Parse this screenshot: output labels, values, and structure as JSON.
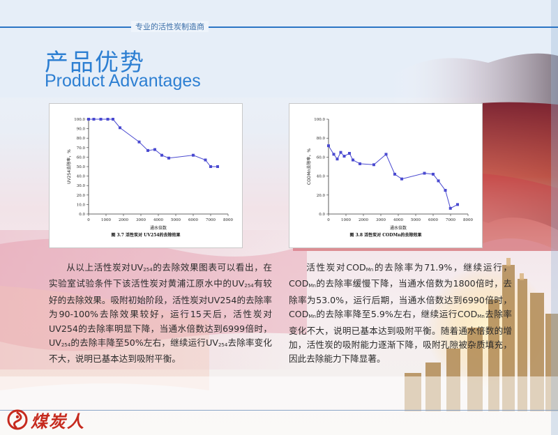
{
  "header": {
    "tagline": "专业的活性炭制造商"
  },
  "title": {
    "cn": "产品优势",
    "en": "Product Advantages"
  },
  "chart_data": [
    {
      "type": "line",
      "ylabel": "UV254去除率，%",
      "xlabel": "通水倍数",
      "caption": "图 3.7 活性炭对 UV254的去除效果",
      "xlim": [
        0,
        8000
      ],
      "ylim": [
        0,
        100
      ],
      "xticks": [
        "0",
        "1000",
        "2000",
        "3000",
        "4000",
        "5000",
        "6000",
        "7000",
        "8000"
      ],
      "yticks": [
        "0.0",
        "10.0",
        "20.0",
        "30.0",
        "40.0",
        "50.0",
        "60.0",
        "70.0",
        "80.0",
        "90.0",
        "100.0"
      ],
      "x": [
        0,
        300,
        700,
        1100,
        1400,
        1800,
        2900,
        3400,
        3800,
        4200,
        4600,
        6000,
        6700,
        7000,
        7400
      ],
      "y": [
        100,
        100,
        100,
        100,
        100,
        91,
        76,
        67,
        68,
        62,
        59,
        62,
        57,
        50,
        50
      ]
    },
    {
      "type": "line",
      "ylabel": "CODMn去除率，%",
      "xlabel": "通水倍数",
      "caption": "图 3.8 活性炭对 CODMn的去除效果",
      "xlim": [
        0,
        8000
      ],
      "ylim": [
        0,
        100
      ],
      "xticks": [
        "0",
        "1000",
        "2000",
        "3000",
        "4000",
        "5000",
        "6000",
        "7000",
        "8000"
      ],
      "yticks": [
        "0.0",
        "20.0",
        "40.0",
        "60.0",
        "80.0",
        "100.0"
      ],
      "x": [
        0,
        300,
        500,
        700,
        900,
        1200,
        1400,
        1800,
        2600,
        3300,
        3800,
        4200,
        5500,
        6000,
        6300,
        6700,
        6990,
        7400
      ],
      "y": [
        72,
        63,
        58,
        65,
        61,
        64,
        57,
        53,
        52,
        63,
        42,
        37,
        43,
        42,
        35,
        25,
        6,
        10
      ]
    }
  ],
  "paragraphs": {
    "left": [
      {
        "t": "从以上活性炭对UV"
      },
      {
        "t": "254",
        "sub": true
      },
      {
        "t": "的去除效果图表可以看出，在实验室试验条件下该活性炭对黄浦江原水中的UV"
      },
      {
        "t": "254",
        "sub": true
      },
      {
        "t": "有较好的去除效果。吸附初始阶段，活性炭对UV254的去除率为90-100%去除效果较好，运行15天后，活性炭对UV254的去除率明显下降，当通水倍数达到6999倍时，UV"
      },
      {
        "t": "254",
        "sub": true
      },
      {
        "t": "的去除丰降至50%左右，继续运行UV"
      },
      {
        "t": "254",
        "sub": true
      },
      {
        "t": "去除率变化不大，说明已基本达到吸附平衡。"
      }
    ],
    "right": [
      {
        "t": "活性炭对COD"
      },
      {
        "t": "Mn",
        "sub": true
      },
      {
        "t": "的去除率为71.9%，继续运行，COD"
      },
      {
        "t": "Mn",
        "sub": true
      },
      {
        "t": "的去除率缓慢下降，当通水倍数为1800倍时，去除率为53.0%，运行后期，当通水倍数达到6990倍时，COD"
      },
      {
        "t": "Mn",
        "sub": true
      },
      {
        "t": "的去除率降至5.9%左右，继续运行COD"
      },
      {
        "t": "Mn",
        "sub": true
      },
      {
        "t": "去除率变化不大，说明已基本达到吸附平衡。随着通水倍数的增加，活性炭的吸附能力逐渐下降，吸附孔隙被杂质填充，因此去除能力下降显著。"
      }
    ]
  },
  "logo": {
    "text": "煤炭人",
    "icon": "swirl-logo-icon",
    "color": "#c62a1e"
  }
}
